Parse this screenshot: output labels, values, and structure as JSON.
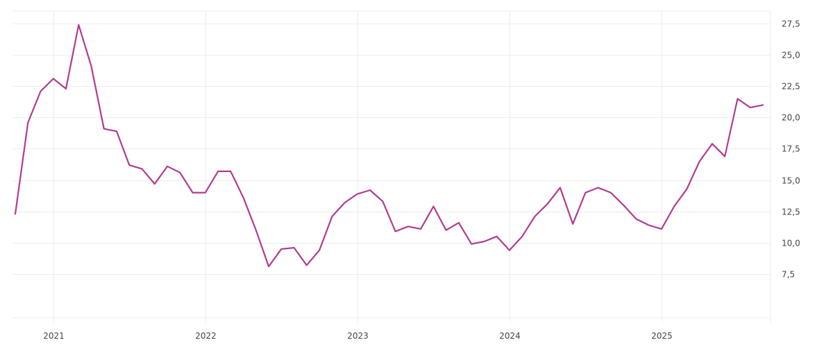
{
  "chart_data": {
    "type": "line",
    "title": "",
    "xlabel": "",
    "ylabel": "",
    "grid": true,
    "legend": "none",
    "y_axis_position": "right",
    "line_color": "#b23a8f",
    "xlim": [
      "2020-10-01",
      "2025-09-01"
    ],
    "ylim": [
      4.0,
      28.5
    ],
    "y_ticks": [
      "7,5",
      "10,0",
      "12,5",
      "15,0",
      "17,5",
      "20,0",
      "22,5",
      "25,0",
      "27,5"
    ],
    "x_ticks": [
      "2021",
      "2022",
      "2023",
      "2024",
      "2025"
    ],
    "series": [
      {
        "x": [
          "2020-10",
          "2020-11",
          "2020-12",
          "2021-01",
          "2021-02",
          "2021-03",
          "2021-04",
          "2021-05",
          "2021-06",
          "2021-07",
          "2021-08",
          "2021-09",
          "2021-10",
          "2021-11",
          "2021-12",
          "2022-01",
          "2022-02",
          "2022-03",
          "2022-04",
          "2022-05",
          "2022-06",
          "2022-07",
          "2022-08",
          "2022-09",
          "2022-10",
          "2022-11",
          "2022-12",
          "2023-01",
          "2023-02",
          "2023-03",
          "2023-04",
          "2023-05",
          "2023-06",
          "2023-07",
          "2023-08",
          "2023-09",
          "2023-10",
          "2023-11",
          "2023-12",
          "2024-01",
          "2024-02",
          "2024-03",
          "2024-04",
          "2024-05",
          "2024-06",
          "2024-07",
          "2024-08",
          "2024-09",
          "2024-10",
          "2024-11",
          "2024-12",
          "2025-01",
          "2025-02",
          "2025-03",
          "2025-04",
          "2025-05",
          "2025-06",
          "2025-07",
          "2025-08",
          "2025-09"
        ],
        "values": [
          12.3,
          19.6,
          22.1,
          23.1,
          22.3,
          27.4,
          24.1,
          19.1,
          18.9,
          16.2,
          15.9,
          14.7,
          16.1,
          15.6,
          14.0,
          14.0,
          15.7,
          15.7,
          13.6,
          11.0,
          8.1,
          9.5,
          9.6,
          8.2,
          9.4,
          12.1,
          13.2,
          13.9,
          14.2,
          13.3,
          10.9,
          11.3,
          11.1,
          12.9,
          11.0,
          11.6,
          9.9,
          10.1,
          10.5,
          9.4,
          10.5,
          12.1,
          13.1,
          14.4,
          11.5,
          14.0,
          14.4,
          14.0,
          13.0,
          11.9,
          11.4,
          11.1,
          12.9,
          14.3,
          16.5,
          17.9,
          16.9,
          21.5,
          20.8,
          21.0
        ]
      }
    ]
  }
}
